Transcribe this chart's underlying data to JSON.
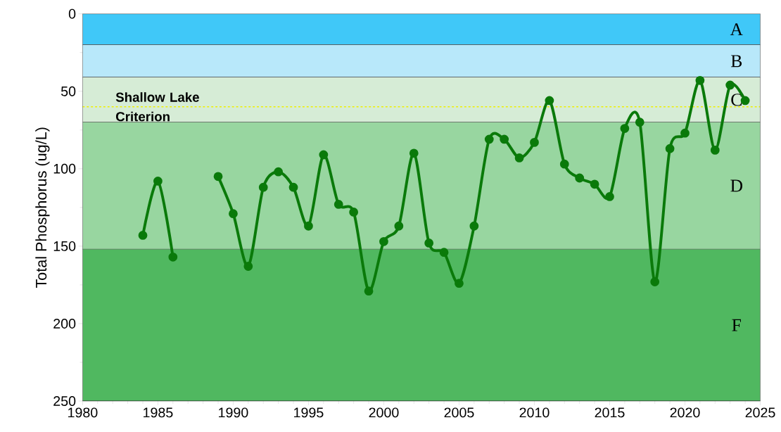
{
  "chart_data": {
    "type": "line",
    "ylabel": "Total Phosphorus (ug/L)",
    "x": [
      1984,
      1985,
      1986,
      1987,
      1988,
      1989,
      1990,
      1991,
      1992,
      1993,
      1994,
      1995,
      1996,
      1997,
      1998,
      1999,
      2000,
      2001,
      2002,
      2003,
      2004,
      2005,
      2006,
      2007,
      2008,
      2009,
      2010,
      2011,
      2012,
      2013,
      2014,
      2015,
      2016,
      2017,
      2018,
      2019,
      2020,
      2021,
      2022,
      2023,
      2024
    ],
    "series": [
      {
        "color": "#0a7a0a",
        "values": [
          143,
          108,
          157,
          null,
          null,
          105,
          129,
          163,
          112,
          102,
          112,
          137,
          91,
          123,
          128,
          179,
          147,
          137,
          90,
          148,
          154,
          174,
          137,
          81,
          81,
          93,
          83,
          56,
          97,
          106,
          110,
          118,
          74,
          70,
          173,
          87,
          77,
          43,
          88,
          46,
          56
        ]
      }
    ],
    "xlim": [
      1980,
      2025
    ],
    "xticks": [
      1980,
      1985,
      1990,
      1995,
      2000,
      2005,
      2010,
      2015,
      2020,
      2025
    ],
    "ylim": [
      250,
      0
    ],
    "yticks": [
      0,
      50,
      100,
      150,
      200,
      250
    ],
    "bands": [
      {
        "axis": "y",
        "from": 0,
        "to": 20,
        "label": "A",
        "color": "#40c8f8"
      },
      {
        "axis": "y",
        "from": 20,
        "to": 41,
        "label": "B",
        "color": "#b8e8fa"
      },
      {
        "axis": "y",
        "from": 41,
        "to": 70,
        "label": "C",
        "color": "#d6ecd6"
      },
      {
        "axis": "y",
        "from": 70,
        "to": 152,
        "label": "D",
        "color": "#98d6a0"
      },
      {
        "axis": "y",
        "from": 152,
        "to": 250,
        "label": "F",
        "color": "#50b860"
      }
    ],
    "ref_lines": [
      {
        "axis": "y",
        "value": 60,
        "label": "Shallow Lake Criterion",
        "color": "#f0f000",
        "line_style": "dashed"
      }
    ],
    "marker": "circle",
    "line_style": "solid"
  }
}
